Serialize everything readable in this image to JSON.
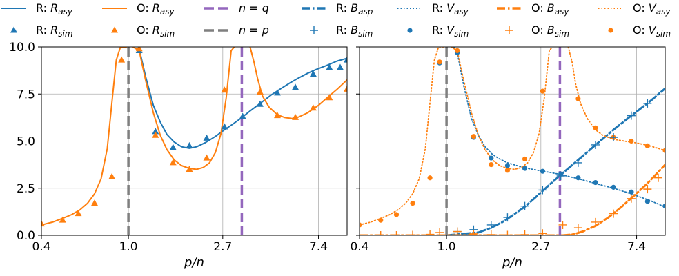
{
  "chart_data": {
    "type": "line",
    "x_scale": "log",
    "x_ticks": [
      0.4,
      1.0,
      2.7,
      7.4
    ],
    "x_tick_labels": [
      "0.4",
      "1.0",
      "2.7",
      "7.4"
    ],
    "y_ticks": [
      0.0,
      2.5,
      5.0,
      7.5,
      10.0
    ],
    "y_tick_labels": [
      "0.0",
      "2.5",
      "5.0",
      "7.5",
      "10.0"
    ],
    "xlim": [
      0.4,
      10.0
    ],
    "ylim": [
      0,
      10
    ],
    "xlabel": "p/n",
    "grid": true,
    "legend_placement": "top, above both panels",
    "legend": [
      {
        "text": "R: R_asy",
        "style": "line",
        "color": "#1f77b4"
      },
      {
        "text": "O: R_asy",
        "style": "line",
        "color": "#ff7f0e"
      },
      {
        "text": "n = q",
        "style": "dashed",
        "color": "#9467bd"
      },
      {
        "text": "R: B_asp",
        "style": "dashdot",
        "color": "#1f77b4"
      },
      {
        "text": "R: V_asy",
        "style": "dotted",
        "color": "#1f77b4"
      },
      {
        "text": "O: B_asy",
        "style": "dashdot",
        "color": "#ff7f0e"
      },
      {
        "text": "O: V_asy",
        "style": "dotted",
        "color": "#ff7f0e"
      },
      {
        "text": "R: R_sim",
        "style": "triangle",
        "color": "#1f77b4"
      },
      {
        "text": "O: R_sim",
        "style": "triangle",
        "color": "#ff7f0e"
      },
      {
        "text": "n = p",
        "style": "dashed",
        "color": "#7f7f7f"
      },
      {
        "text": "R: B_sim",
        "style": "plus",
        "color": "#1f77b4"
      },
      {
        "text": "R: V_sim",
        "style": "circle",
        "color": "#1f77b4"
      },
      {
        "text": "O: B_sim",
        "style": "plus",
        "color": "#ff7f0e"
      },
      {
        "text": "O: V_sim",
        "style": "circle",
        "color": "#ff7f0e"
      }
    ],
    "vlines": [
      {
        "x": 1.0,
        "color": "#7f7f7f"
      },
      {
        "x": 3.3,
        "color": "#9467bd"
      }
    ],
    "panels": [
      {
        "series": [
          {
            "name": "R: R_asy",
            "style": "line",
            "color": "#1f77b4",
            "x": [
              1.12,
              1.2,
              1.3,
              1.4,
              1.5,
              1.62,
              1.75,
              1.9,
              2.05,
              2.25,
              2.5,
              2.75,
              3.0,
              3.3,
              3.6,
              4.0,
              4.5,
              5.0,
              5.5,
              6.0,
              6.6,
              7.2,
              8.0,
              9.0,
              10.0
            ],
            "y": [
              9.9,
              8.4,
              6.9,
              6.0,
              5.35,
              4.95,
              4.7,
              4.62,
              4.7,
              4.92,
              5.25,
              5.6,
              5.9,
              6.25,
              6.6,
              7.0,
              7.45,
              7.8,
              8.1,
              8.35,
              8.6,
              8.8,
              9.0,
              9.25,
              9.4
            ]
          },
          {
            "name": "O: R_asy",
            "style": "line",
            "color": "#ff7f0e",
            "x": [
              0.4,
              0.45,
              0.5,
              0.55,
              0.6,
              0.65,
              0.7,
              0.75,
              0.8,
              0.85,
              0.88,
              0.92,
              0.95,
              0.98
            ],
            "y": [
              0.55,
              0.7,
              0.9,
              1.1,
              1.35,
              1.7,
              2.2,
              3.0,
              4.6,
              7.6,
              9.3,
              10.0,
              10.0,
              10.0
            ]
          },
          {
            "name": "O: R_asy",
            "style": "line",
            "color": "#ff7f0e",
            "x": [
              1.05,
              1.12,
              1.2,
              1.3,
              1.4,
              1.5,
              1.62,
              1.75,
              1.9,
              2.05,
              2.2,
              2.35,
              2.5,
              2.65,
              2.8,
              2.95,
              3.05
            ],
            "y": [
              10.0,
              9.8,
              8.2,
              6.5,
              5.3,
              4.55,
              4.0,
              3.7,
              3.55,
              3.5,
              3.6,
              3.85,
              4.4,
              5.4,
              7.3,
              9.8,
              10.0
            ]
          },
          {
            "name": "O: R_asy",
            "style": "line",
            "color": "#ff7f0e",
            "x": [
              3.6,
              3.75,
              3.9,
              4.1,
              4.4,
              4.8,
              5.2,
              5.6,
              6.0,
              6.6,
              7.4,
              8.2,
              9.0,
              10.0
            ],
            "y": [
              10.0,
              9.2,
              8.3,
              7.4,
              6.8,
              6.4,
              6.25,
              6.2,
              6.28,
              6.5,
              6.9,
              7.35,
              7.75,
              8.25
            ]
          },
          {
            "name": "R: R_sim",
            "style": "triangle",
            "color": "#1f77b4",
            "x": [
              1.12,
              1.33,
              1.6,
              1.9,
              2.28,
              2.75,
              3.33,
              4.0,
              4.8,
              5.8,
              7.0,
              8.3,
              9.3,
              10.0
            ],
            "y": [
              9.8,
              5.5,
              4.65,
              4.75,
              5.15,
              5.75,
              6.3,
              6.95,
              7.55,
              7.85,
              8.55,
              8.9,
              8.9,
              9.3
            ]
          },
          {
            "name": "O: R_sim",
            "style": "triangle",
            "color": "#ff7f0e",
            "x": [
              0.4,
              0.5,
              0.59,
              0.7,
              0.84,
              0.93,
              1.12,
              1.33,
              1.6,
              1.9,
              2.28,
              2.75,
              4.0,
              4.8,
              5.8,
              7.0,
              8.3,
              10.0
            ],
            "y": [
              0.6,
              0.8,
              1.15,
              1.7,
              3.1,
              9.3,
              9.9,
              5.3,
              3.85,
              3.5,
              4.1,
              7.7,
              7.6,
              6.35,
              6.25,
              6.75,
              7.3,
              7.75
            ]
          }
        ]
      },
      {
        "series": [
          {
            "name": "R: V_asy",
            "style": "dotted",
            "color": "#1f77b4",
            "x": [
              1.08,
              1.12,
              1.2,
              1.3,
              1.4,
              1.5,
              1.62,
              1.75,
              1.9,
              2.1,
              2.35,
              2.7,
              3.0,
              3.4,
              4.0,
              4.8,
              5.8,
              7.0,
              8.5,
              10.0
            ],
            "y": [
              10.0,
              9.7,
              7.9,
              6.2,
              5.3,
              4.7,
              4.3,
              4.05,
              3.85,
              3.7,
              3.55,
              3.42,
              3.33,
              3.2,
              3.0,
              2.75,
              2.5,
              2.2,
              1.85,
              1.5
            ]
          },
          {
            "name": "R: B_asp",
            "style": "dashdot",
            "color": "#1f77b4",
            "x": [
              1.0,
              1.4,
              1.6,
              1.8,
              2.0,
              2.3,
              2.6,
              3.0,
              3.4,
              4.0,
              4.8,
              5.8,
              7.0,
              8.5,
              10.0
            ],
            "y": [
              0.0,
              0.15,
              0.4,
              0.7,
              1.05,
              1.55,
              2.1,
              2.75,
              3.3,
              4.0,
              4.8,
              5.6,
              6.35,
              7.1,
              7.8
            ]
          },
          {
            "name": "O: V_asy",
            "style": "dotted",
            "color": "#ff7f0e",
            "x": [
              0.4,
              0.45,
              0.5,
              0.55,
              0.6,
              0.65,
              0.7,
              0.75,
              0.8,
              0.85,
              0.88,
              0.92,
              0.95,
              0.98
            ],
            "y": [
              0.55,
              0.7,
              0.9,
              1.1,
              1.35,
              1.7,
              2.2,
              3.0,
              4.6,
              7.6,
              9.3,
              10.0,
              10.0,
              10.0
            ]
          },
          {
            "name": "O: V_asy",
            "style": "dotted",
            "color": "#ff7f0e",
            "x": [
              1.05,
              1.12,
              1.2,
              1.3,
              1.4,
              1.5,
              1.62,
              1.75,
              1.9,
              2.05,
              2.2,
              2.35,
              2.5,
              2.65,
              2.8,
              2.95,
              3.05
            ],
            "y": [
              10.0,
              9.8,
              8.2,
              6.5,
              5.3,
              4.55,
              4.0,
              3.7,
              3.55,
              3.5,
              3.6,
              3.85,
              4.4,
              5.4,
              7.3,
              9.8,
              10.0
            ]
          },
          {
            "name": "O: V_asy",
            "style": "dotted",
            "color": "#ff7f0e",
            "x": [
              3.6,
              3.75,
              3.9,
              4.1,
              4.4,
              4.8,
              5.2,
              5.8,
              6.5,
              7.4,
              8.5,
              10.0
            ],
            "y": [
              10.0,
              9.2,
              8.0,
              7.0,
              6.2,
              5.6,
              5.3,
              5.1,
              5.0,
              4.9,
              4.75,
              4.5
            ]
          },
          {
            "name": "O: B_asy",
            "style": "dashdot",
            "color": "#ff7f0e",
            "x": [
              0.4,
              3.4,
              3.8,
              4.2,
              4.8,
              5.5,
              6.3,
              7.2,
              8.2,
              9.2,
              10.0
            ],
            "y": [
              0.0,
              0.0,
              0.05,
              0.2,
              0.5,
              0.95,
              1.5,
              2.1,
              2.7,
              3.3,
              3.75
            ]
          },
          {
            "name": "R: V_sim",
            "style": "circle",
            "color": "#1f77b4",
            "x": [
              0.93,
              1.12,
              1.33,
              1.6,
              1.9,
              2.28,
              2.75,
              3.33,
              4.0,
              4.8,
              5.8,
              7.0,
              8.3,
              10.0
            ],
            "y": [
              9.15,
              9.7,
              5.2,
              4.1,
              3.7,
              3.55,
              3.4,
              3.25,
              3.05,
              2.8,
              2.55,
              2.3,
              1.8,
              1.55
            ]
          },
          {
            "name": "O: V_sim",
            "style": "circle",
            "color": "#ff7f0e",
            "x": [
              0.4,
              0.5,
              0.59,
              0.7,
              0.84,
              0.93,
              1.12,
              1.33,
              1.6,
              1.9,
              2.28,
              2.75,
              4.0,
              4.8,
              5.8,
              7.0,
              8.3,
              10.0
            ],
            "y": [
              0.55,
              0.8,
              1.1,
              1.7,
              3.05,
              9.2,
              9.8,
              5.25,
              3.75,
              3.45,
              4.05,
              7.65,
              7.25,
              5.7,
              5.2,
              5.0,
              4.75,
              4.5
            ]
          },
          {
            "name": "R: B_sim",
            "style": "plus",
            "color": "#1f77b4",
            "x": [
              1.12,
              1.33,
              1.6,
              1.9,
              2.28,
              2.75,
              3.33,
              4.0,
              4.8,
              5.8,
              7.0,
              8.3
            ],
            "y": [
              0.2,
              0.3,
              0.55,
              0.95,
              1.55,
              2.4,
              3.15,
              3.85,
              4.8,
              5.2,
              6.35,
              7.0
            ]
          },
          {
            "name": "O: B_sim",
            "style": "plus",
            "color": "#ff7f0e",
            "x": [
              0.4,
              0.5,
              0.59,
              0.7,
              0.84,
              0.93,
              1.12,
              1.33,
              1.6,
              1.9,
              2.28,
              2.75,
              3.4,
              4.0,
              4.8,
              5.8,
              7.0,
              8.3,
              9.3
            ],
            "y": [
              0.0,
              0.0,
              0.0,
              0.02,
              0.05,
              0.15,
              0.2,
              0.08,
              0.04,
              0.02,
              0.04,
              0.1,
              0.55,
              0.4,
              0.7,
              1.15,
              1.95,
              2.45,
              3.05
            ]
          }
        ]
      }
    ]
  }
}
